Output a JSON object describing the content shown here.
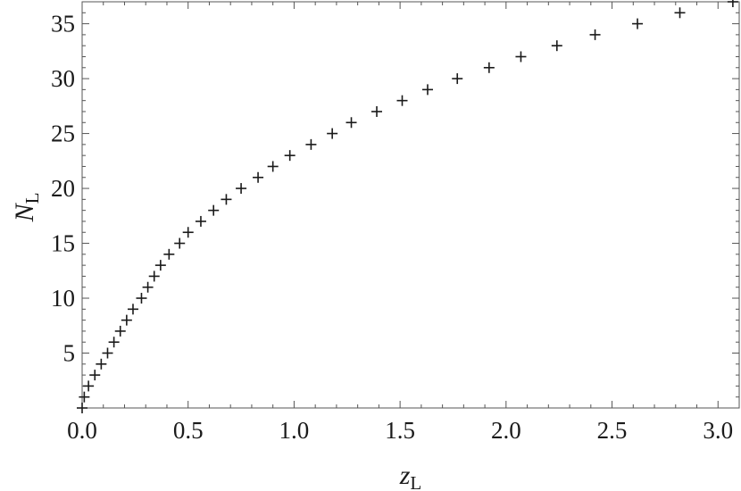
{
  "chart_data": {
    "type": "scatter",
    "marker": "plus",
    "xlabel": "z",
    "xlabel_subscript": "L",
    "ylabel": "N",
    "ylabel_subscript": "L",
    "xlim": [
      0,
      3.1
    ],
    "ylim": [
      0,
      37
    ],
    "x_ticks": [
      0.0,
      0.5,
      1.0,
      1.5,
      2.0,
      2.5,
      3.0
    ],
    "x_tick_labels": [
      "0.0",
      "0.5",
      "1.0",
      "1.5",
      "2.0",
      "2.5",
      "3.0"
    ],
    "y_ticks": [
      5,
      10,
      15,
      20,
      25,
      30,
      35
    ],
    "y_tick_labels": [
      "5",
      "10",
      "15",
      "20",
      "25",
      "30",
      "35"
    ],
    "grid": false,
    "legend": "none",
    "points": [
      {
        "x": 0.0,
        "y": 0
      },
      {
        "x": 0.01,
        "y": 1
      },
      {
        "x": 0.03,
        "y": 2
      },
      {
        "x": 0.06,
        "y": 3
      },
      {
        "x": 0.09,
        "y": 4
      },
      {
        "x": 0.12,
        "y": 5
      },
      {
        "x": 0.15,
        "y": 6
      },
      {
        "x": 0.18,
        "y": 7
      },
      {
        "x": 0.21,
        "y": 8
      },
      {
        "x": 0.24,
        "y": 9
      },
      {
        "x": 0.28,
        "y": 10
      },
      {
        "x": 0.31,
        "y": 11
      },
      {
        "x": 0.34,
        "y": 12
      },
      {
        "x": 0.37,
        "y": 13
      },
      {
        "x": 0.41,
        "y": 14
      },
      {
        "x": 0.46,
        "y": 15
      },
      {
        "x": 0.5,
        "y": 16
      },
      {
        "x": 0.56,
        "y": 17
      },
      {
        "x": 0.62,
        "y": 18
      },
      {
        "x": 0.68,
        "y": 19
      },
      {
        "x": 0.75,
        "y": 20
      },
      {
        "x": 0.83,
        "y": 21
      },
      {
        "x": 0.9,
        "y": 22
      },
      {
        "x": 0.98,
        "y": 23
      },
      {
        "x": 1.08,
        "y": 24
      },
      {
        "x": 1.18,
        "y": 25
      },
      {
        "x": 1.27,
        "y": 26
      },
      {
        "x": 1.39,
        "y": 27
      },
      {
        "x": 1.51,
        "y": 28
      },
      {
        "x": 1.63,
        "y": 29
      },
      {
        "x": 1.77,
        "y": 30
      },
      {
        "x": 1.92,
        "y": 31
      },
      {
        "x": 2.07,
        "y": 32
      },
      {
        "x": 2.24,
        "y": 33
      },
      {
        "x": 2.42,
        "y": 34
      },
      {
        "x": 2.62,
        "y": 35
      },
      {
        "x": 2.82,
        "y": 36
      },
      {
        "x": 3.07,
        "y": 37
      }
    ]
  }
}
